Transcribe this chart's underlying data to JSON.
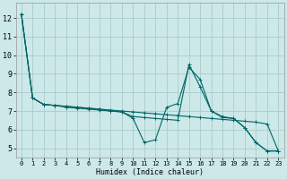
{
  "title": "",
  "xlabel": "Humidex (Indice chaleur)",
  "ylabel": "",
  "bg_color": "#cce8e8",
  "grid_color": "#aacccc",
  "line_color": "#006666",
  "xlim": [
    -0.5,
    23.5
  ],
  "ylim": [
    4.5,
    12.8
  ],
  "xticks": [
    0,
    1,
    2,
    3,
    4,
    5,
    6,
    7,
    8,
    9,
    10,
    11,
    12,
    13,
    14,
    15,
    16,
    17,
    18,
    19,
    20,
    21,
    22,
    23
  ],
  "yticks": [
    5,
    6,
    7,
    8,
    9,
    10,
    11,
    12
  ],
  "line1_x": [
    0,
    1,
    2,
    3,
    4,
    5,
    6,
    7,
    8,
    9,
    10,
    11,
    12,
    13,
    14,
    15,
    16,
    17,
    18,
    19,
    20,
    21,
    22,
    23
  ],
  "line1_y": [
    12.2,
    7.7,
    7.35,
    7.3,
    7.25,
    7.2,
    7.15,
    7.1,
    7.05,
    7.0,
    6.95,
    6.9,
    6.85,
    6.8,
    6.75,
    6.7,
    6.65,
    6.6,
    6.55,
    6.5,
    6.45,
    6.4,
    6.3,
    4.85
  ],
  "line2_x": [
    0,
    1,
    2,
    3,
    4,
    5,
    6,
    7,
    8,
    9,
    10,
    11,
    12,
    13,
    14,
    15,
    16,
    17,
    18,
    19,
    20,
    21,
    22,
    23
  ],
  "line2_y": [
    12.2,
    7.7,
    7.35,
    7.3,
    7.2,
    7.15,
    7.1,
    7.05,
    7.0,
    6.95,
    6.6,
    5.3,
    5.45,
    7.2,
    7.4,
    9.35,
    8.7,
    7.0,
    6.7,
    6.6,
    6.1,
    5.3,
    4.85,
    4.85
  ],
  "line3_x": [
    0,
    1,
    2,
    3,
    4,
    5,
    6,
    7,
    8,
    9,
    10,
    11,
    12,
    13,
    14,
    15,
    16,
    17,
    18,
    19,
    20,
    21,
    22,
    23
  ],
  "line3_y": [
    12.2,
    7.7,
    7.35,
    7.3,
    7.25,
    7.2,
    7.15,
    7.1,
    7.0,
    6.95,
    6.7,
    6.65,
    6.6,
    6.55,
    6.5,
    9.5,
    8.3,
    7.0,
    6.65,
    6.6,
    6.1,
    5.3,
    4.85,
    4.85
  ]
}
